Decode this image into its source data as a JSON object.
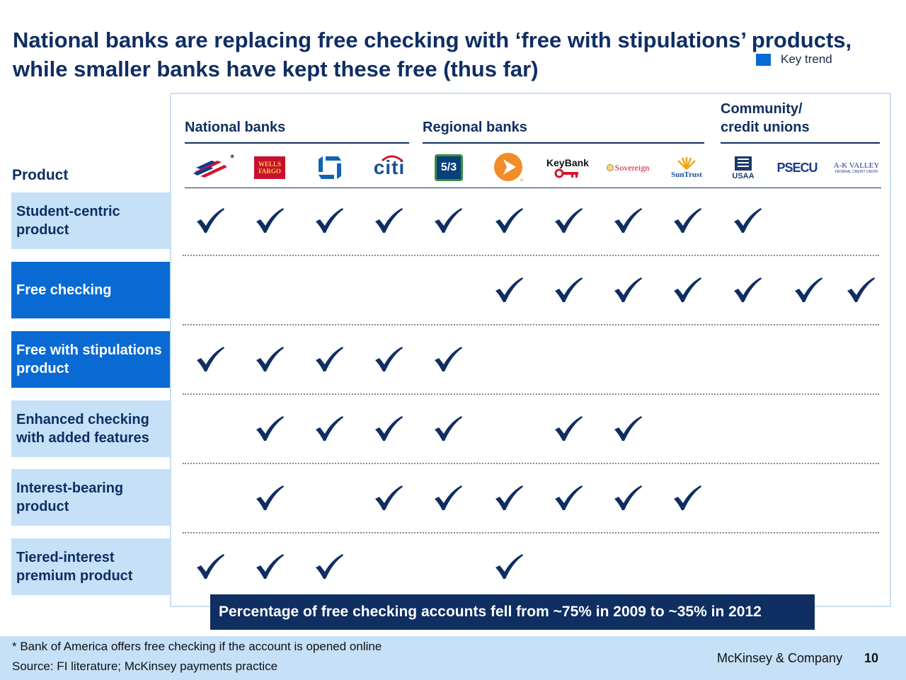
{
  "title": "National banks are replacing free checking with ‘free with stipulations’ products, while smaller banks have kept these free (thus far)",
  "legend": {
    "swatch_color": "#0a6ad4",
    "label": "Key trend"
  },
  "groups": [
    {
      "id": "national",
      "label": "National banks"
    },
    {
      "id": "regional",
      "label": "Regional banks"
    },
    {
      "id": "community",
      "label": "Community/ credit unions"
    }
  ],
  "product_heading": "Product",
  "asterisk": "*",
  "banks": [
    {
      "name": "Bank of America",
      "icon": "bank-of-america-logo-icon"
    },
    {
      "name": "Wells Fargo",
      "icon": "wells-fargo-logo-icon",
      "logo_text": "WELLS FARGO"
    },
    {
      "name": "Chase",
      "icon": "chase-logo-icon"
    },
    {
      "name": "Citi",
      "icon": "citi-logo-icon",
      "logo_text": "citi"
    },
    {
      "name": "Fifth Third",
      "icon": "fifth-third-logo-icon",
      "logo_text": "5/3"
    },
    {
      "name": "Regions",
      "icon": "regions-logo-icon"
    },
    {
      "name": "KeyBank",
      "icon": "keybank-logo-icon",
      "logo_text": "KeyBank"
    },
    {
      "name": "Sovereign",
      "icon": "sovereign-logo-icon",
      "logo_text": "Sovereign"
    },
    {
      "name": "SunTrust",
      "icon": "suntrust-logo-icon",
      "logo_text": "SunTrust"
    },
    {
      "name": "USAA",
      "icon": "usaa-logo-icon",
      "logo_text": "USAA"
    },
    {
      "name": "PSECU",
      "icon": "psecu-logo-icon",
      "logo_text": "PSECU"
    },
    {
      "name": "A-K Valley",
      "icon": "ak-valley-logo-icon",
      "logo_text": "A-K VALLEY",
      "logo_subtext": "FEDERAL CREDIT UNION"
    }
  ],
  "rows": [
    {
      "label": "Student-centric product",
      "key_trend": false,
      "checks": [
        1,
        1,
        1,
        1,
        1,
        1,
        1,
        1,
        1,
        1,
        0,
        0
      ]
    },
    {
      "label": "Free checking",
      "key_trend": true,
      "checks": [
        0,
        0,
        0,
        0,
        0,
        1,
        1,
        1,
        1,
        1,
        1,
        1
      ]
    },
    {
      "label": "Free with stipulations product",
      "key_trend": true,
      "checks": [
        1,
        1,
        1,
        1,
        1,
        0,
        0,
        0,
        0,
        0,
        0,
        0
      ]
    },
    {
      "label": "Enhanced checking with added features",
      "key_trend": false,
      "checks": [
        0,
        1,
        1,
        1,
        1,
        0,
        1,
        1,
        0,
        0,
        0,
        0
      ]
    },
    {
      "label": "Interest-bearing product",
      "key_trend": false,
      "checks": [
        0,
        1,
        0,
        1,
        1,
        1,
        1,
        1,
        1,
        0,
        0,
        0
      ]
    },
    {
      "label": "Tiered-interest premium product",
      "key_trend": false,
      "checks": [
        1,
        1,
        1,
        0,
        0,
        1,
        0,
        0,
        0,
        0,
        0,
        0
      ]
    }
  ],
  "check_icon": "checkmark-icon",
  "callout": "Percentage of free checking accounts fell from ~75% in 2009 to ~35% in 2012",
  "footnote": "* Bank of America offers free checking if the account is opened online",
  "source": "Source: FI literature; McKinsey payments practice",
  "company": "McKinsey & Company",
  "page_number": "10"
}
